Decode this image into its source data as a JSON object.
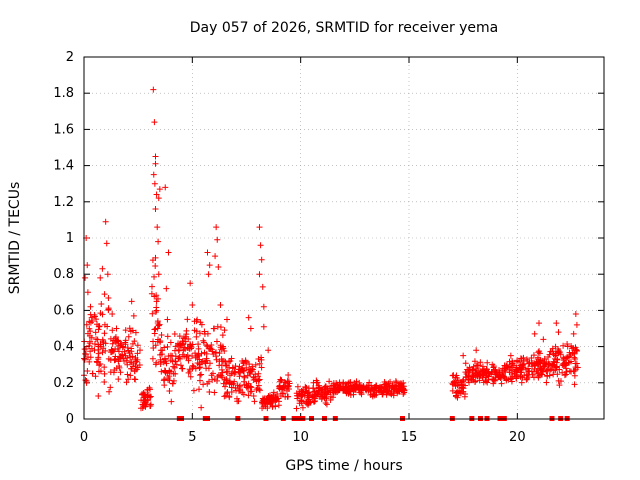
{
  "chart_data": {
    "type": "scatter",
    "title": "Day 057 of 2026, SRMTID for receiver yema",
    "xlabel": "GPS time / hours",
    "ylabel": "SRMTID / TECUs",
    "xlim": [
      0,
      24
    ],
    "ylim": [
      0,
      2
    ],
    "x_ticks": [
      0,
      5,
      10,
      15,
      20
    ],
    "x_tick_labels": [
      "0",
      "5",
      "10",
      "15",
      "20"
    ],
    "y_ticks": [
      0,
      0.2,
      0.4,
      0.6,
      0.8,
      1,
      1.2,
      1.4,
      1.6,
      1.8,
      2
    ],
    "y_tick_labels": [
      "0",
      "0.2",
      "0.4",
      "0.6",
      "0.8",
      "1",
      "1.2",
      "1.4",
      "1.6",
      "1.8",
      "2"
    ],
    "grid": true,
    "marker": "+",
    "series_color": "#ff0000",
    "outage_markers_x": [
      4.4,
      4.5,
      5.6,
      5.7,
      7.1,
      8.4,
      9.2,
      9.7,
      9.8,
      9.9,
      10.0,
      10.1,
      10.5,
      11.1,
      11.6,
      14.7,
      17.0,
      17.9,
      18.3,
      18.6,
      19.2,
      19.3,
      19.4,
      21.6,
      22.0,
      22.3
    ],
    "segments": [
      {
        "x_start": 0.0,
        "x_end": 0.5,
        "base": 0.4,
        "spread": 0.3
      },
      {
        "x_start": 0.5,
        "x_end": 1.2,
        "base": 0.45,
        "spread": 0.35
      },
      {
        "x_start": 1.2,
        "x_end": 2.6,
        "base": 0.35,
        "spread": 0.2
      },
      {
        "x_start": 2.6,
        "x_end": 3.1,
        "base": 0.12,
        "spread": 0.1
      },
      {
        "x_start": 3.1,
        "x_end": 3.5,
        "base": 0.55,
        "spread": 0.5
      },
      {
        "x_start": 3.5,
        "x_end": 4.3,
        "base": 0.3,
        "spread": 0.25
      },
      {
        "x_start": 4.3,
        "x_end": 5.0,
        "base": 0.38,
        "spread": 0.2
      },
      {
        "x_start": 5.0,
        "x_end": 6.5,
        "base": 0.35,
        "spread": 0.3
      },
      {
        "x_start": 6.5,
        "x_end": 8.2,
        "base": 0.22,
        "spread": 0.18
      },
      {
        "x_start": 8.2,
        "x_end": 9.0,
        "base": 0.1,
        "spread": 0.06
      },
      {
        "x_start": 9.0,
        "x_end": 9.5,
        "base": 0.18,
        "spread": 0.08
      },
      {
        "x_start": 9.8,
        "x_end": 10.5,
        "base": 0.12,
        "spread": 0.08
      },
      {
        "x_start": 10.5,
        "x_end": 11.5,
        "base": 0.15,
        "spread": 0.1
      },
      {
        "x_start": 11.5,
        "x_end": 14.8,
        "base": 0.17,
        "spread": 0.06
      },
      {
        "x_start": 17.0,
        "x_end": 17.6,
        "base": 0.18,
        "spread": 0.12
      },
      {
        "x_start": 17.6,
        "x_end": 19.5,
        "base": 0.25,
        "spread": 0.08
      },
      {
        "x_start": 19.5,
        "x_end": 21.5,
        "base": 0.28,
        "spread": 0.12
      },
      {
        "x_start": 21.5,
        "x_end": 22.8,
        "base": 0.32,
        "spread": 0.15
      }
    ],
    "points": [
      {
        "x": 3.2,
        "y": 1.82
      },
      {
        "x": 3.25,
        "y": 1.64
      },
      {
        "x": 3.3,
        "y": 1.45
      },
      {
        "x": 3.3,
        "y": 1.41
      },
      {
        "x": 3.22,
        "y": 1.35
      },
      {
        "x": 3.27,
        "y": 1.3
      },
      {
        "x": 3.35,
        "y": 1.24
      },
      {
        "x": 3.45,
        "y": 1.22
      },
      {
        "x": 3.5,
        "y": 1.27
      },
      {
        "x": 3.3,
        "y": 1.16
      },
      {
        "x": 3.38,
        "y": 1.06
      },
      {
        "x": 3.42,
        "y": 0.98
      },
      {
        "x": 3.3,
        "y": 0.89
      },
      {
        "x": 3.45,
        "y": 0.8
      },
      {
        "x": 3.35,
        "y": 0.65
      },
      {
        "x": 3.4,
        "y": 0.5
      },
      {
        "x": 3.55,
        "y": 0.38
      },
      {
        "x": 3.75,
        "y": 1.28
      },
      {
        "x": 3.9,
        "y": 0.92
      },
      {
        "x": 3.8,
        "y": 0.72
      },
      {
        "x": 3.85,
        "y": 0.55
      },
      {
        "x": 0.1,
        "y": 1.0
      },
      {
        "x": 0.15,
        "y": 0.85
      },
      {
        "x": 0.05,
        "y": 0.78
      },
      {
        "x": 0.18,
        "y": 0.7
      },
      {
        "x": 0.3,
        "y": 0.62
      },
      {
        "x": 0.75,
        "y": 0.78
      },
      {
        "x": 0.85,
        "y": 0.83
      },
      {
        "x": 1.0,
        "y": 1.09
      },
      {
        "x": 1.05,
        "y": 0.97
      },
      {
        "x": 1.1,
        "y": 0.8
      },
      {
        "x": 0.95,
        "y": 0.69
      },
      {
        "x": 1.3,
        "y": 0.58
      },
      {
        "x": 1.5,
        "y": 0.5
      },
      {
        "x": 2.2,
        "y": 0.65
      },
      {
        "x": 2.3,
        "y": 0.57
      },
      {
        "x": 4.9,
        "y": 0.75
      },
      {
        "x": 5.0,
        "y": 0.63
      },
      {
        "x": 5.1,
        "y": 0.54
      },
      {
        "x": 5.7,
        "y": 0.92
      },
      {
        "x": 5.8,
        "y": 0.85
      },
      {
        "x": 5.75,
        "y": 0.8
      },
      {
        "x": 6.1,
        "y": 1.06
      },
      {
        "x": 6.15,
        "y": 0.99
      },
      {
        "x": 6.05,
        "y": 0.9
      },
      {
        "x": 6.2,
        "y": 0.84
      },
      {
        "x": 6.3,
        "y": 0.63
      },
      {
        "x": 6.6,
        "y": 0.55
      },
      {
        "x": 7.6,
        "y": 0.56
      },
      {
        "x": 7.7,
        "y": 0.5
      },
      {
        "x": 8.1,
        "y": 1.06
      },
      {
        "x": 8.15,
        "y": 0.96
      },
      {
        "x": 8.2,
        "y": 0.88
      },
      {
        "x": 8.1,
        "y": 0.8
      },
      {
        "x": 8.25,
        "y": 0.73
      },
      {
        "x": 8.3,
        "y": 0.62
      },
      {
        "x": 8.3,
        "y": 0.51
      },
      {
        "x": 8.5,
        "y": 0.38
      },
      {
        "x": 20.8,
        "y": 0.47
      },
      {
        "x": 21.0,
        "y": 0.53
      },
      {
        "x": 21.2,
        "y": 0.44
      },
      {
        "x": 21.8,
        "y": 0.53
      },
      {
        "x": 21.9,
        "y": 0.48
      },
      {
        "x": 22.7,
        "y": 0.58
      },
      {
        "x": 22.75,
        "y": 0.52
      },
      {
        "x": 22.6,
        "y": 0.47
      },
      {
        "x": 17.5,
        "y": 0.35
      },
      {
        "x": 18.1,
        "y": 0.38
      },
      {
        "x": 19.7,
        "y": 0.35
      }
    ]
  }
}
